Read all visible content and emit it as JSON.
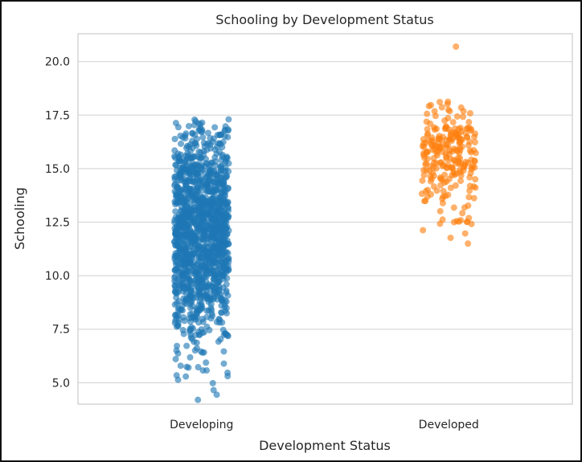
{
  "chart_data": {
    "type": "scatter",
    "subtype": "strip",
    "title": "Schooling by Development Status",
    "xlabel": "Development Status",
    "ylabel": "Schooling",
    "categories": [
      "Developing",
      "Developed"
    ],
    "ylim": [
      4.0,
      21.3
    ],
    "yticks": [
      "5.0",
      "7.5",
      "10.0",
      "12.5",
      "15.0",
      "17.5",
      "20.0"
    ],
    "grid": "horizontal",
    "legend": "none",
    "series": [
      {
        "category": "Developing",
        "color": "#1f77b4",
        "count": 1400,
        "min": 4.2,
        "max": 17.3,
        "summary": {
          "median": 12.2,
          "q1": 10.4,
          "q3": 13.9
        }
      },
      {
        "category": "Developed",
        "color": "#ff7f0e",
        "count": 240,
        "min": 11.5,
        "max": 20.7,
        "summary": {
          "median": 15.8,
          "q1": 14.8,
          "q3": 16.5
        }
      }
    ],
    "colors": {
      "grid": "#d9d9d9",
      "spine": "#cccccc",
      "text": "#262626"
    }
  }
}
